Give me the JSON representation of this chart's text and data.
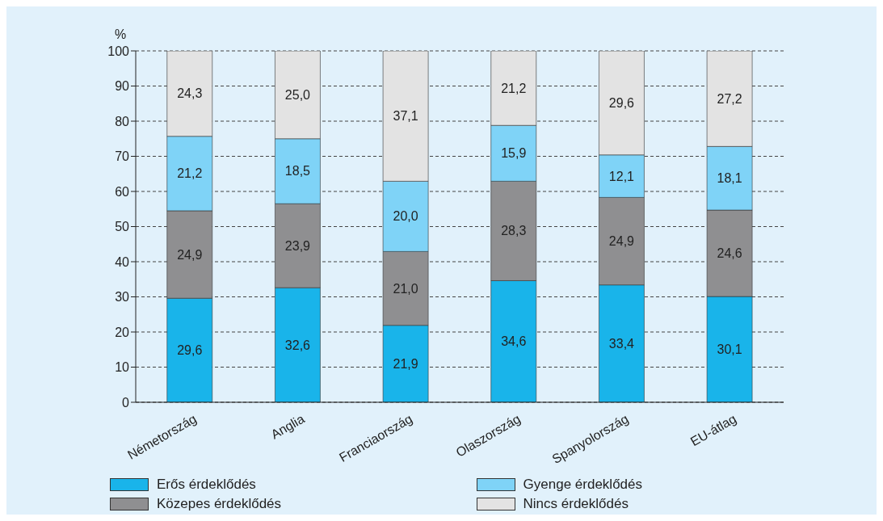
{
  "chart_data": {
    "type": "bar",
    "stacked": true,
    "ylabel": "%",
    "categories": [
      "Németország",
      "Anglia",
      "Franciaország",
      "Olaszország",
      "Spanyolország",
      "EU-átlag"
    ],
    "series": [
      {
        "name": "Erős érdeklődés",
        "color": "#19b4ea",
        "values": [
          29.6,
          32.6,
          21.9,
          34.6,
          33.4,
          30.1
        ],
        "value_labels": [
          "29,6",
          "32,6",
          "21,9",
          "34,6",
          "33,4",
          "30,1"
        ]
      },
      {
        "name": "Közepes érdeklődés",
        "color": "#8f8f91",
        "values": [
          24.9,
          23.9,
          21.0,
          28.3,
          24.9,
          24.6
        ],
        "value_labels": [
          "24,9",
          "23,9",
          "21,0",
          "28,3",
          "24,9",
          "24,6"
        ]
      },
      {
        "name": "Gyenge érdeklődés",
        "color": "#7fd3f7",
        "values": [
          21.2,
          18.5,
          20.0,
          15.9,
          12.1,
          18.1
        ],
        "value_labels": [
          "21,2",
          "18,5",
          "20,0",
          "15,9",
          "12,1",
          "18,1"
        ]
      },
      {
        "name": "Nincs érdeklődés",
        "color": "#e3e3e3",
        "values": [
          24.3,
          25.0,
          37.1,
          21.2,
          29.6,
          27.2
        ],
        "value_labels": [
          "24,3",
          "25,0",
          "37,1",
          "21,2",
          "29,6",
          "27,2"
        ]
      }
    ],
    "ylim": [
      0,
      100
    ],
    "yticks": [
      0,
      10,
      20,
      30,
      40,
      50,
      60,
      70,
      80,
      90,
      100
    ],
    "grid": "y",
    "legend": "bottom"
  }
}
